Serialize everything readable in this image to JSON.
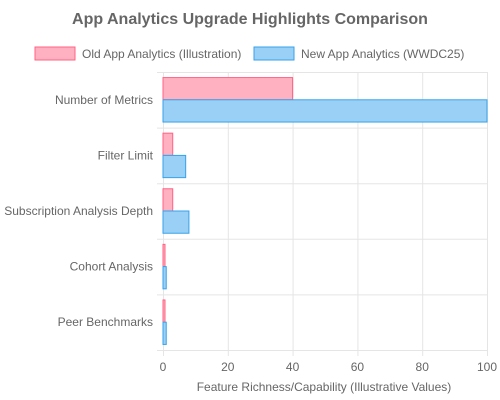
{
  "chart_data": {
    "type": "bar",
    "orientation": "horizontal",
    "title": "App Analytics Upgrade Highlights Comparison",
    "xlabel": "Feature Richness/Capability (Illustrative Values)",
    "ylabel": "",
    "xlim": [
      0,
      100
    ],
    "x_ticks": [
      0,
      20,
      40,
      60,
      80,
      100
    ],
    "grid": true,
    "legend_position": "top",
    "categories": [
      "Number of Metrics",
      "Filter Limit",
      "Subscription Analysis Depth",
      "Cohort Analysis",
      "Peer Benchmarks"
    ],
    "series": [
      {
        "name": "Old App Analytics (Illustration)",
        "values": [
          40,
          3,
          3,
          0,
          0
        ],
        "color": "#ffb1c1",
        "border": "#ff6384"
      },
      {
        "name": "New App Analytics (WWDC25)",
        "values": [
          100,
          7,
          8,
          1,
          1
        ],
        "color": "#9ad0f5",
        "border": "#36a2eb"
      }
    ]
  }
}
